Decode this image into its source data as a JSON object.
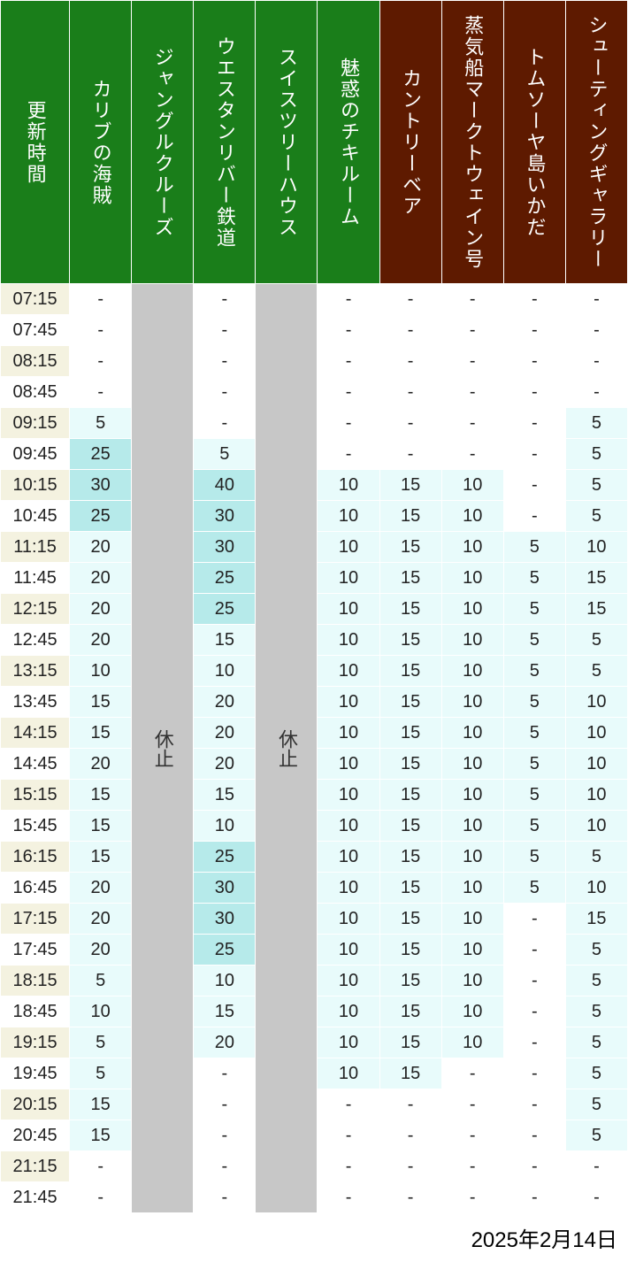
{
  "date_footer": "2025年2月14日",
  "closed_label": "休止",
  "colors": {
    "header_green": "#1a7e1a",
    "header_brown": "#5e1a00",
    "time_bg_odd": "#f4f2e0",
    "time_bg_even": "#ffffff",
    "cell_white": "#ffffff",
    "cell_light": "#e8fbfb",
    "cell_mid": "#b6eaea",
    "closed_bg": "#c7c7c7",
    "closed_fg": "#333333",
    "text_dark": "#222222"
  },
  "columns": [
    {
      "key": "time",
      "label": "更新時間",
      "header_color": "header_green",
      "is_time": true
    },
    {
      "key": "c1",
      "label": "カリブの海賊",
      "header_color": "header_green"
    },
    {
      "key": "c2",
      "label": "ジャングルクルーズ",
      "header_color": "header_green",
      "closed": true
    },
    {
      "key": "c3",
      "label": "ウエスタンリバー鉄道",
      "header_color": "header_green"
    },
    {
      "key": "c4",
      "label": "スイスツリーハウス",
      "header_color": "header_green",
      "closed": true
    },
    {
      "key": "c5",
      "label": "魅惑のチキルーム",
      "header_color": "header_green"
    },
    {
      "key": "c6",
      "label": "カントリーベア",
      "header_color": "header_brown"
    },
    {
      "key": "c7",
      "label": "蒸気船マークトウェイン号",
      "header_color": "header_brown"
    },
    {
      "key": "c8",
      "label": "トムソーヤ島いかだ",
      "header_color": "header_brown"
    },
    {
      "key": "c9",
      "label": "シューティングギャラリー",
      "header_color": "header_brown"
    }
  ],
  "thresholds": {
    "mid_min": 25,
    "light_min": 5
  },
  "rows": [
    {
      "time": "07:15",
      "c1": "-",
      "c3": "-",
      "c5": "-",
      "c6": "-",
      "c7": "-",
      "c8": "-",
      "c9": "-"
    },
    {
      "time": "07:45",
      "c1": "-",
      "c3": "-",
      "c5": "-",
      "c6": "-",
      "c7": "-",
      "c8": "-",
      "c9": "-"
    },
    {
      "time": "08:15",
      "c1": "-",
      "c3": "-",
      "c5": "-",
      "c6": "-",
      "c7": "-",
      "c8": "-",
      "c9": "-"
    },
    {
      "time": "08:45",
      "c1": "-",
      "c3": "-",
      "c5": "-",
      "c6": "-",
      "c7": "-",
      "c8": "-",
      "c9": "-"
    },
    {
      "time": "09:15",
      "c1": "5",
      "c3": "-",
      "c5": "-",
      "c6": "-",
      "c7": "-",
      "c8": "-",
      "c9": "5"
    },
    {
      "time": "09:45",
      "c1": "25",
      "c3": "5",
      "c5": "-",
      "c6": "-",
      "c7": "-",
      "c8": "-",
      "c9": "5"
    },
    {
      "time": "10:15",
      "c1": "30",
      "c3": "40",
      "c5": "10",
      "c6": "15",
      "c7": "10",
      "c8": "-",
      "c9": "5"
    },
    {
      "time": "10:45",
      "c1": "25",
      "c3": "30",
      "c5": "10",
      "c6": "15",
      "c7": "10",
      "c8": "-",
      "c9": "5"
    },
    {
      "time": "11:15",
      "c1": "20",
      "c3": "30",
      "c5": "10",
      "c6": "15",
      "c7": "10",
      "c8": "5",
      "c9": "10"
    },
    {
      "time": "11:45",
      "c1": "20",
      "c3": "25",
      "c5": "10",
      "c6": "15",
      "c7": "10",
      "c8": "5",
      "c9": "15"
    },
    {
      "time": "12:15",
      "c1": "20",
      "c3": "25",
      "c5": "10",
      "c6": "15",
      "c7": "10",
      "c8": "5",
      "c9": "15"
    },
    {
      "time": "12:45",
      "c1": "20",
      "c3": "15",
      "c5": "10",
      "c6": "15",
      "c7": "10",
      "c8": "5",
      "c9": "5"
    },
    {
      "time": "13:15",
      "c1": "10",
      "c3": "10",
      "c5": "10",
      "c6": "15",
      "c7": "10",
      "c8": "5",
      "c9": "5"
    },
    {
      "time": "13:45",
      "c1": "15",
      "c3": "20",
      "c5": "10",
      "c6": "15",
      "c7": "10",
      "c8": "5",
      "c9": "10"
    },
    {
      "time": "14:15",
      "c1": "15",
      "c3": "20",
      "c5": "10",
      "c6": "15",
      "c7": "10",
      "c8": "5",
      "c9": "10"
    },
    {
      "time": "14:45",
      "c1": "20",
      "c3": "20",
      "c5": "10",
      "c6": "15",
      "c7": "10",
      "c8": "5",
      "c9": "10"
    },
    {
      "time": "15:15",
      "c1": "15",
      "c3": "15",
      "c5": "10",
      "c6": "15",
      "c7": "10",
      "c8": "5",
      "c9": "10"
    },
    {
      "time": "15:45",
      "c1": "15",
      "c3": "10",
      "c5": "10",
      "c6": "15",
      "c7": "10",
      "c8": "5",
      "c9": "10"
    },
    {
      "time": "16:15",
      "c1": "15",
      "c3": "25",
      "c5": "10",
      "c6": "15",
      "c7": "10",
      "c8": "5",
      "c9": "5"
    },
    {
      "time": "16:45",
      "c1": "20",
      "c3": "30",
      "c5": "10",
      "c6": "15",
      "c7": "10",
      "c8": "5",
      "c9": "10"
    },
    {
      "time": "17:15",
      "c1": "20",
      "c3": "30",
      "c5": "10",
      "c6": "15",
      "c7": "10",
      "c8": "-",
      "c9": "15"
    },
    {
      "time": "17:45",
      "c1": "20",
      "c3": "25",
      "c5": "10",
      "c6": "15",
      "c7": "10",
      "c8": "-",
      "c9": "5"
    },
    {
      "time": "18:15",
      "c1": "5",
      "c3": "10",
      "c5": "10",
      "c6": "15",
      "c7": "10",
      "c8": "-",
      "c9": "5"
    },
    {
      "time": "18:45",
      "c1": "10",
      "c3": "15",
      "c5": "10",
      "c6": "15",
      "c7": "10",
      "c8": "-",
      "c9": "5"
    },
    {
      "time": "19:15",
      "c1": "5",
      "c3": "20",
      "c5": "10",
      "c6": "15",
      "c7": "10",
      "c8": "-",
      "c9": "5"
    },
    {
      "time": "19:45",
      "c1": "5",
      "c3": "-",
      "c5": "10",
      "c6": "15",
      "c7": "-",
      "c8": "-",
      "c9": "5"
    },
    {
      "time": "20:15",
      "c1": "15",
      "c3": "-",
      "c5": "-",
      "c6": "-",
      "c7": "-",
      "c8": "-",
      "c9": "5"
    },
    {
      "time": "20:45",
      "c1": "15",
      "c3": "-",
      "c5": "-",
      "c6": "-",
      "c7": "-",
      "c8": "-",
      "c9": "5"
    },
    {
      "time": "21:15",
      "c1": "-",
      "c3": "-",
      "c5": "-",
      "c6": "-",
      "c7": "-",
      "c8": "-",
      "c9": "-"
    },
    {
      "time": "21:45",
      "c1": "-",
      "c3": "-",
      "c5": "-",
      "c6": "-",
      "c7": "-",
      "c8": "-",
      "c9": "-"
    }
  ]
}
